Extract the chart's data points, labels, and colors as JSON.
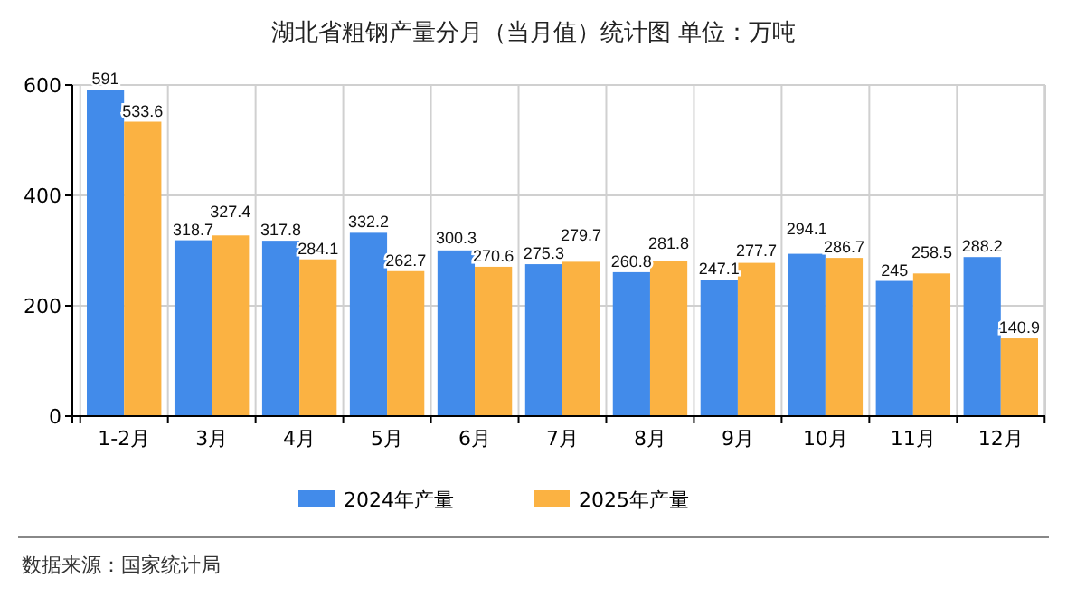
{
  "chart_data": {
    "type": "bar",
    "title": "湖北省粗钢产量分月（当月值）统计图 单位：万吨",
    "categories": [
      "1-2月",
      "3月",
      "4月",
      "5月",
      "6月",
      "7月",
      "8月",
      "9月",
      "10月",
      "11月",
      "12月"
    ],
    "series": [
      {
        "name": "2024年产量",
        "color": "#428bea",
        "values": [
          591,
          318.7,
          317.8,
          332.2,
          300.3,
          275.3,
          260.8,
          247.1,
          294.1,
          245,
          288.2
        ]
      },
      {
        "name": "2025年产量",
        "color": "#fbb242",
        "values": [
          533.6,
          327.4,
          284.1,
          262.7,
          270.6,
          279.7,
          281.8,
          277.7,
          286.7,
          258.5,
          140.9
        ]
      }
    ],
    "ylim": [
      0,
      600
    ],
    "yticks": [
      0,
      200,
      400,
      600
    ],
    "grid": true,
    "legend": "bottom",
    "data_labels": true,
    "annotations": [
      "数据来源：国家统计局"
    ]
  }
}
